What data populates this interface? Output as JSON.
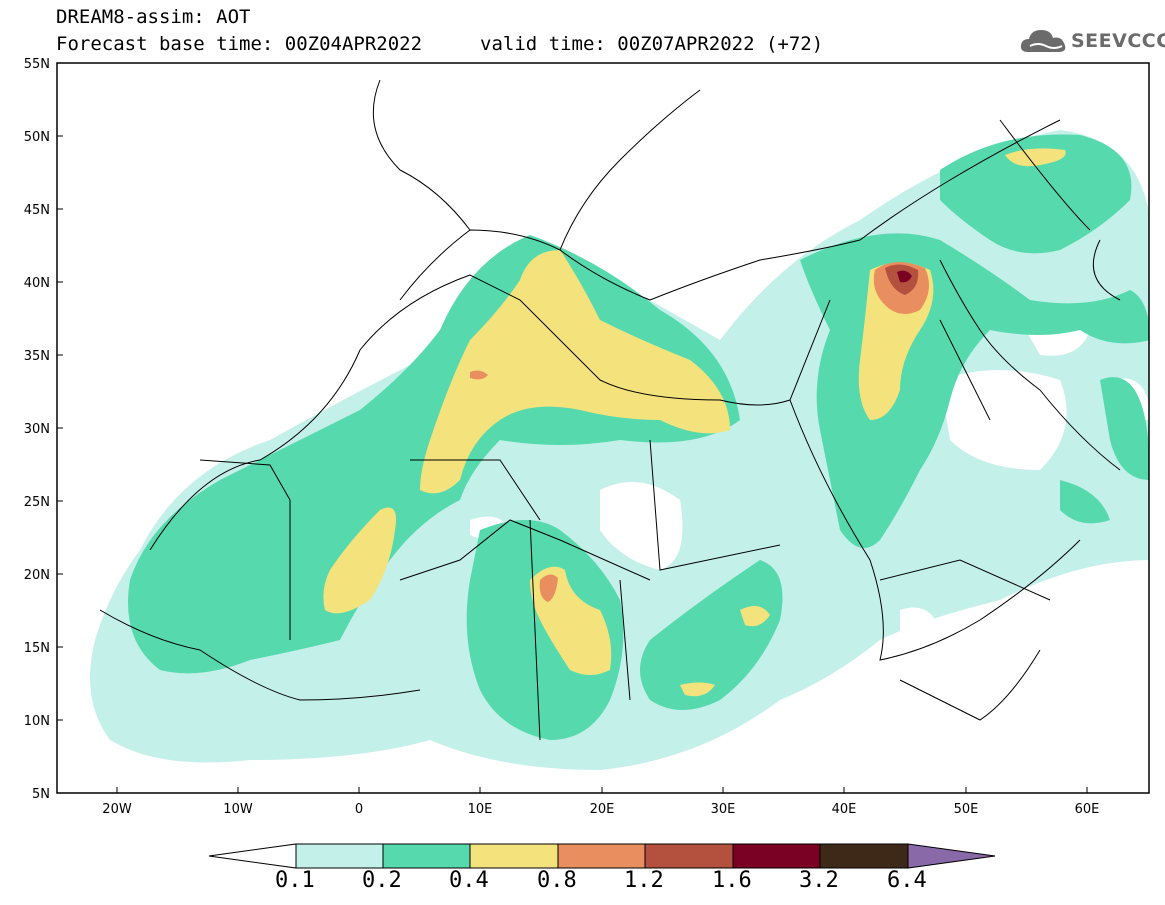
{
  "header": {
    "line1": "DREAM8-assim: AOT",
    "line2": "Forecast base time: 00Z04APR2022",
    "line3": "valid time: 00Z07APR2022 (+72)"
  },
  "logo": {
    "text": "SEEVCCC",
    "icon": "cloud-icon"
  },
  "map": {
    "lon_range": [
      -25,
      65
    ],
    "lat_range": [
      5,
      55
    ],
    "lat_labels": [
      "55N",
      "50N",
      "45N",
      "40N",
      "35N",
      "30N",
      "25N",
      "20N",
      "15N",
      "10N",
      "5N"
    ],
    "lon_labels": [
      "20W",
      "10W",
      "0",
      "10E",
      "20E",
      "30E",
      "40E",
      "50E",
      "60E"
    ],
    "background": "#ffffff"
  },
  "colorbar": {
    "colors": [
      "#c4f0ea",
      "#55d9ad",
      "#f4e37c",
      "#e98e5f",
      "#b4513e",
      "#7a0024",
      "#3e2818",
      "#8a69a9"
    ],
    "under_color": "#ffffff",
    "labels": [
      "0.1",
      "0.2",
      "0.4",
      "0.8",
      "1.2",
      "1.6",
      "3.2",
      "6.4"
    ]
  }
}
